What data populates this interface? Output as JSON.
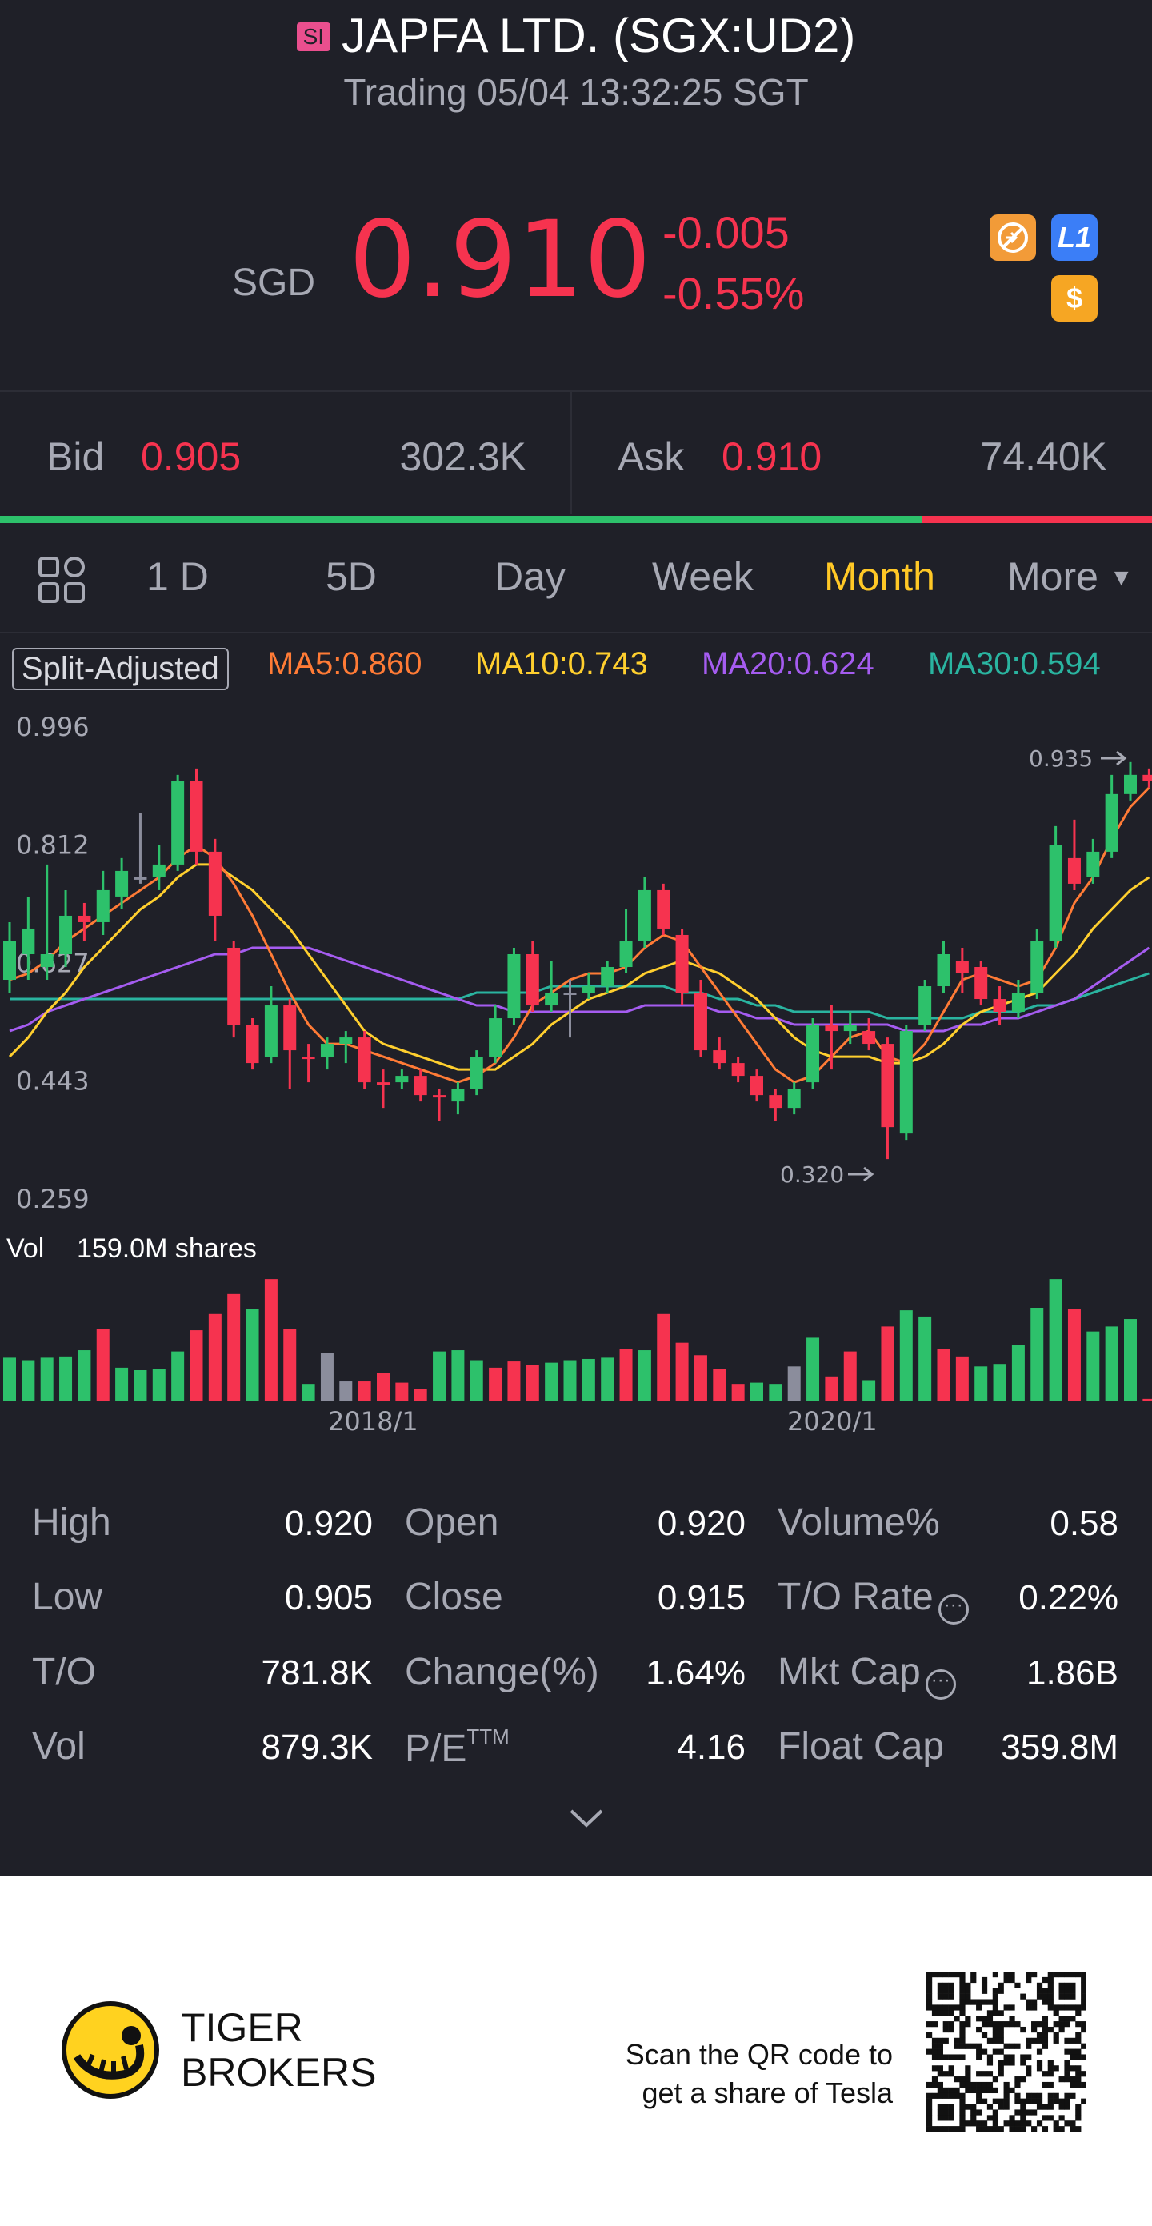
{
  "header": {
    "badge": "SI",
    "title": "JAPFA LTD. (SGX:UD2)",
    "subtitle": "Trading 05/04 13:32:25 SGT"
  },
  "quote": {
    "currency": "SGD",
    "price": "0.910",
    "change": "-0.005",
    "change_pct": "-0.55%",
    "badges": [
      "no-shorting-icon",
      "L1",
      "$"
    ]
  },
  "bid_ask": {
    "bid_label": "Bid",
    "bid_price": "0.905",
    "bid_volume": "302.3K",
    "ask_label": "Ask",
    "ask_price": "0.910",
    "ask_volume": "74.40K",
    "bid_ratio": 0.8
  },
  "tabs": {
    "items": [
      "1 D",
      "5D",
      "Day",
      "Week",
      "Month",
      "More"
    ],
    "active": "Month"
  },
  "indicators": {
    "split": "Split-Adjusted",
    "ma5": "MA5:0.860",
    "ma10": "MA10:0.743",
    "ma20": "MA20:0.624",
    "ma30": "MA30:0.594"
  },
  "colors": {
    "up": "#2dc16b",
    "down": "#f6334f",
    "neutral": "#8b8d9c",
    "ma5": "#ff7b36",
    "ma10": "#ffcf2e",
    "ma20": "#a55cf0",
    "ma30": "#2ab4a0",
    "accent": "#ffc826",
    "background": "#1f2028"
  },
  "chart_data": {
    "type": "candlestick",
    "y_ticks": [
      "0.996",
      "0.812",
      "0.627",
      "0.443",
      "0.259"
    ],
    "ylim": [
      0.259,
      0.996
    ],
    "high_label": "0.935",
    "low_label": "0.320",
    "x_ticks": [
      "2018/1",
      "2020/1"
    ],
    "vol_label": "Vol",
    "vol_value": "159.0M shares",
    "candles": [
      {
        "o": 0.6,
        "c": 0.66,
        "h": 0.69,
        "l": 0.58
      },
      {
        "o": 0.64,
        "c": 0.68,
        "h": 0.73,
        "l": 0.6
      },
      {
        "o": 0.62,
        "c": 0.64,
        "h": 0.78,
        "l": 0.6
      },
      {
        "o": 0.64,
        "c": 0.7,
        "h": 0.74,
        "l": 0.62
      },
      {
        "o": 0.7,
        "c": 0.69,
        "h": 0.72,
        "l": 0.66
      },
      {
        "o": 0.69,
        "c": 0.74,
        "h": 0.77,
        "l": 0.67
      },
      {
        "o": 0.73,
        "c": 0.77,
        "h": 0.79,
        "l": 0.71
      },
      {
        "o": 0.76,
        "c": 0.76,
        "h": 0.86,
        "l": 0.75
      },
      {
        "o": 0.76,
        "c": 0.78,
        "h": 0.81,
        "l": 0.74
      },
      {
        "o": 0.78,
        "c": 0.91,
        "h": 0.92,
        "l": 0.77
      },
      {
        "o": 0.91,
        "c": 0.8,
        "h": 0.93,
        "l": 0.78
      },
      {
        "o": 0.8,
        "c": 0.7,
        "h": 0.82,
        "l": 0.66
      },
      {
        "o": 0.65,
        "c": 0.53,
        "h": 0.66,
        "l": 0.51
      },
      {
        "o": 0.53,
        "c": 0.47,
        "h": 0.54,
        "l": 0.46
      },
      {
        "o": 0.48,
        "c": 0.56,
        "h": 0.59,
        "l": 0.47
      },
      {
        "o": 0.56,
        "c": 0.49,
        "h": 0.57,
        "l": 0.43
      },
      {
        "o": 0.48,
        "c": 0.48,
        "h": 0.5,
        "l": 0.44
      },
      {
        "o": 0.48,
        "c": 0.5,
        "h": 0.51,
        "l": 0.46
      },
      {
        "o": 0.5,
        "c": 0.51,
        "h": 0.52,
        "l": 0.47
      },
      {
        "o": 0.51,
        "c": 0.44,
        "h": 0.52,
        "l": 0.43
      },
      {
        "o": 0.44,
        "c": 0.44,
        "h": 0.46,
        "l": 0.4
      },
      {
        "o": 0.44,
        "c": 0.45,
        "h": 0.46,
        "l": 0.43
      },
      {
        "o": 0.45,
        "c": 0.42,
        "h": 0.46,
        "l": 0.41
      },
      {
        "o": 0.42,
        "c": 0.42,
        "h": 0.43,
        "l": 0.38
      },
      {
        "o": 0.41,
        "c": 0.43,
        "h": 0.44,
        "l": 0.39
      },
      {
        "o": 0.43,
        "c": 0.48,
        "h": 0.49,
        "l": 0.42
      },
      {
        "o": 0.48,
        "c": 0.54,
        "h": 0.56,
        "l": 0.47
      },
      {
        "o": 0.54,
        "c": 0.64,
        "h": 0.65,
        "l": 0.53
      },
      {
        "o": 0.64,
        "c": 0.56,
        "h": 0.66,
        "l": 0.55
      },
      {
        "o": 0.56,
        "c": 0.58,
        "h": 0.63,
        "l": 0.55
      },
      {
        "o": 0.58,
        "c": 0.58,
        "h": 0.6,
        "l": 0.51
      },
      {
        "o": 0.58,
        "c": 0.59,
        "h": 0.61,
        "l": 0.57
      },
      {
        "o": 0.59,
        "c": 0.62,
        "h": 0.63,
        "l": 0.58
      },
      {
        "o": 0.62,
        "c": 0.66,
        "h": 0.71,
        "l": 0.61
      },
      {
        "o": 0.66,
        "c": 0.74,
        "h": 0.76,
        "l": 0.65
      },
      {
        "o": 0.74,
        "c": 0.68,
        "h": 0.75,
        "l": 0.67
      },
      {
        "o": 0.67,
        "c": 0.58,
        "h": 0.68,
        "l": 0.56
      },
      {
        "o": 0.58,
        "c": 0.49,
        "h": 0.6,
        "l": 0.48
      },
      {
        "o": 0.49,
        "c": 0.47,
        "h": 0.51,
        "l": 0.46
      },
      {
        "o": 0.47,
        "c": 0.45,
        "h": 0.48,
        "l": 0.44
      },
      {
        "o": 0.45,
        "c": 0.42,
        "h": 0.46,
        "l": 0.41
      },
      {
        "o": 0.42,
        "c": 0.4,
        "h": 0.43,
        "l": 0.38
      },
      {
        "o": 0.4,
        "c": 0.43,
        "h": 0.44,
        "l": 0.39
      },
      {
        "o": 0.44,
        "c": 0.53,
        "h": 0.54,
        "l": 0.43
      },
      {
        "o": 0.53,
        "c": 0.52,
        "h": 0.56,
        "l": 0.46
      },
      {
        "o": 0.52,
        "c": 0.53,
        "h": 0.55,
        "l": 0.5
      },
      {
        "o": 0.52,
        "c": 0.5,
        "h": 0.54,
        "l": 0.49
      },
      {
        "o": 0.5,
        "c": 0.37,
        "h": 0.51,
        "l": 0.32
      },
      {
        "o": 0.36,
        "c": 0.52,
        "h": 0.53,
        "l": 0.35
      },
      {
        "o": 0.53,
        "c": 0.59,
        "h": 0.6,
        "l": 0.52
      },
      {
        "o": 0.59,
        "c": 0.64,
        "h": 0.66,
        "l": 0.58
      },
      {
        "o": 0.63,
        "c": 0.61,
        "h": 0.65,
        "l": 0.58
      },
      {
        "o": 0.62,
        "c": 0.57,
        "h": 0.63,
        "l": 0.56
      },
      {
        "o": 0.57,
        "c": 0.55,
        "h": 0.59,
        "l": 0.53
      },
      {
        "o": 0.55,
        "c": 0.58,
        "h": 0.6,
        "l": 0.54
      },
      {
        "o": 0.58,
        "c": 0.66,
        "h": 0.68,
        "l": 0.57
      },
      {
        "o": 0.66,
        "c": 0.81,
        "h": 0.84,
        "l": 0.65
      },
      {
        "o": 0.79,
        "c": 0.75,
        "h": 0.85,
        "l": 0.74
      },
      {
        "o": 0.76,
        "c": 0.8,
        "h": 0.82,
        "l": 0.75
      },
      {
        "o": 0.8,
        "c": 0.89,
        "h": 0.92,
        "l": 0.79
      },
      {
        "o": 0.89,
        "c": 0.92,
        "h": 0.94,
        "l": 0.88
      },
      {
        "o": 0.92,
        "c": 0.91,
        "h": 0.93,
        "l": 0.9
      }
    ],
    "ma5": [
      0.6,
      0.61,
      0.63,
      0.66,
      0.68,
      0.7,
      0.72,
      0.74,
      0.76,
      0.79,
      0.81,
      0.79,
      0.75,
      0.7,
      0.64,
      0.58,
      0.53,
      0.5,
      0.5,
      0.49,
      0.48,
      0.47,
      0.46,
      0.45,
      0.44,
      0.45,
      0.47,
      0.51,
      0.56,
      0.58,
      0.6,
      0.61,
      0.61,
      0.62,
      0.65,
      0.67,
      0.66,
      0.62,
      0.58,
      0.54,
      0.5,
      0.46,
      0.44,
      0.45,
      0.48,
      0.51,
      0.52,
      0.48,
      0.47,
      0.5,
      0.55,
      0.6,
      0.61,
      0.6,
      0.59,
      0.6,
      0.65,
      0.72,
      0.76,
      0.82,
      0.87,
      0.9
    ],
    "ma10": [
      0.48,
      0.51,
      0.55,
      0.58,
      0.62,
      0.65,
      0.68,
      0.71,
      0.73,
      0.76,
      0.78,
      0.78,
      0.76,
      0.74,
      0.71,
      0.68,
      0.64,
      0.6,
      0.56,
      0.52,
      0.5,
      0.49,
      0.48,
      0.47,
      0.46,
      0.46,
      0.46,
      0.48,
      0.5,
      0.53,
      0.55,
      0.57,
      0.58,
      0.59,
      0.61,
      0.62,
      0.63,
      0.62,
      0.61,
      0.59,
      0.57,
      0.54,
      0.51,
      0.49,
      0.48,
      0.48,
      0.48,
      0.47,
      0.47,
      0.48,
      0.5,
      0.53,
      0.55,
      0.56,
      0.57,
      0.58,
      0.61,
      0.64,
      0.68,
      0.71,
      0.74,
      0.76
    ],
    "ma20": [
      0.52,
      0.53,
      0.55,
      0.56,
      0.57,
      0.58,
      0.59,
      0.6,
      0.61,
      0.62,
      0.63,
      0.64,
      0.64,
      0.65,
      0.65,
      0.65,
      0.65,
      0.64,
      0.63,
      0.62,
      0.61,
      0.6,
      0.59,
      0.58,
      0.57,
      0.56,
      0.56,
      0.55,
      0.55,
      0.55,
      0.55,
      0.55,
      0.55,
      0.55,
      0.56,
      0.56,
      0.56,
      0.56,
      0.55,
      0.55,
      0.54,
      0.54,
      0.53,
      0.53,
      0.53,
      0.53,
      0.53,
      0.53,
      0.52,
      0.52,
      0.52,
      0.53,
      0.53,
      0.54,
      0.54,
      0.55,
      0.56,
      0.57,
      0.59,
      0.61,
      0.63,
      0.65
    ],
    "ma30": [
      0.57,
      0.57,
      0.57,
      0.57,
      0.57,
      0.57,
      0.57,
      0.57,
      0.57,
      0.57,
      0.57,
      0.57,
      0.57,
      0.57,
      0.57,
      0.57,
      0.57,
      0.57,
      0.57,
      0.57,
      0.57,
      0.57,
      0.57,
      0.57,
      0.57,
      0.58,
      0.58,
      0.58,
      0.58,
      0.59,
      0.59,
      0.59,
      0.59,
      0.59,
      0.59,
      0.59,
      0.58,
      0.58,
      0.57,
      0.57,
      0.56,
      0.56,
      0.55,
      0.55,
      0.55,
      0.55,
      0.55,
      0.54,
      0.54,
      0.54,
      0.54,
      0.54,
      0.55,
      0.55,
      0.55,
      0.56,
      0.56,
      0.57,
      0.58,
      0.59,
      0.6,
      0.61
    ],
    "volumes": [
      0.35,
      0.33,
      0.35,
      0.36,
      0.41,
      0.58,
      0.27,
      0.25,
      0.26,
      0.4,
      0.57,
      0.7,
      0.86,
      0.74,
      0.98,
      0.58,
      0.14,
      0.39,
      0.16,
      0.16,
      0.23,
      0.15,
      0.1,
      0.4,
      0.41,
      0.33,
      0.27,
      0.32,
      0.29,
      0.31,
      0.33,
      0.34,
      0.35,
      0.42,
      0.41,
      0.7,
      0.47,
      0.37,
      0.26,
      0.14,
      0.15,
      0.14,
      0.28,
      0.51,
      0.2,
      0.4,
      0.17,
      0.6,
      0.73,
      0.68,
      0.42,
      0.36,
      0.28,
      0.3,
      0.45,
      0.75,
      0.98,
      0.74,
      0.56,
      0.6,
      0.66,
      0.02
    ],
    "volume_dir": [
      "up",
      "up",
      "up",
      "up",
      "up",
      "down",
      "up",
      "up",
      "up",
      "up",
      "down",
      "down",
      "down",
      "up",
      "down",
      "down",
      "up",
      "neutral",
      "neutral",
      "down",
      "down",
      "down",
      "down",
      "up",
      "up",
      "up",
      "down",
      "down",
      "down",
      "up",
      "up",
      "up",
      "up",
      "down",
      "up",
      "down",
      "down",
      "down",
      "down",
      "down",
      "up",
      "up",
      "neutral",
      "up",
      "down",
      "down",
      "up",
      "down",
      "up",
      "up",
      "down",
      "down",
      "up",
      "up",
      "up",
      "up",
      "up",
      "down",
      "up",
      "up",
      "up",
      "down"
    ]
  },
  "stats": [
    {
      "label": "High",
      "value": "0.920"
    },
    {
      "label": "Open",
      "value": "0.920"
    },
    {
      "label": "Volume%",
      "value": "0.58"
    },
    {
      "label": "Low",
      "value": "0.905"
    },
    {
      "label": "Close",
      "value": "0.915"
    },
    {
      "label": "T/O Rate",
      "value": "0.22%"
    },
    {
      "label": "T/O",
      "value": "781.8K"
    },
    {
      "label": "Change(%)",
      "value": "1.64%"
    },
    {
      "label": "Mkt Cap",
      "value": "1.86B"
    },
    {
      "label": "Vol",
      "value": "879.3K"
    },
    {
      "label": "P/E",
      "sup": "TTM",
      "value": "4.16"
    },
    {
      "label": "Float Cap",
      "value": "359.8M"
    }
  ],
  "footer": {
    "brand_line1": "TIGER",
    "brand_line2": "BROKERS",
    "promo_line1": "Scan the QR code to",
    "promo_line2": "get a share of Tesla"
  }
}
